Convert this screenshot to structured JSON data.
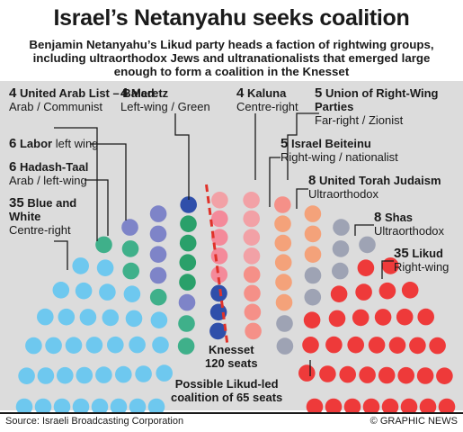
{
  "header": {
    "title": "Israel’s Netanyahu seeks coalition",
    "subtitle_line1": "Benjamin Netanyahu’s Likud party heads a faction of rightwing groups,",
    "subtitle_line2": "including ultraorthodox Jews and ultranationalists that emerged large",
    "subtitle_line3": "enough to form a coalition in the Knesset"
  },
  "annotations": {
    "knesset_line1": "Knesset",
    "knesset_line2": "120 seats",
    "coalition_line1": "Possible Likud-led",
    "coalition_line2": "coalition of 65 seats"
  },
  "footer": {
    "source": "Source: Israeli Broadcasting Corporation",
    "credit": "© GRAPHIC NEWS"
  },
  "colors": {
    "panel_bg": "#dcdcdc",
    "divider": "#e0322a",
    "leader_lines": "#1a1a1a"
  },
  "chart_data": {
    "type": "parliament",
    "total_seats": 120,
    "coalition_seats": 65,
    "parties": [
      {
        "name": "Blue and White",
        "description": "Centre-right",
        "seats": 35,
        "color": "#6ec8ef",
        "bloc": "opposition",
        "label": "blue-and-white"
      },
      {
        "name": "Hadash-Taal",
        "description": "Arab / left-wing",
        "seats": 6,
        "color": "#3fb08a",
        "bloc": "opposition",
        "label": "hadash-taal"
      },
      {
        "name": "Labor",
        "description": "left wing",
        "seats": 6,
        "color": "#7e84c8",
        "bloc": "opposition",
        "label": "labor"
      },
      {
        "name": "United Arab List – Balad",
        "description": "Arab / Communist",
        "seats": 4,
        "color": "#2aa06a",
        "bloc": "opposition",
        "label": "united-arab-list"
      },
      {
        "name": "Meretz",
        "description": "Left-wing / Green",
        "seats": 4,
        "color": "#2f4faa",
        "bloc": "opposition",
        "label": "meretz"
      },
      {
        "name": "Kaluna",
        "description": "Centre-right",
        "seats": 4,
        "color": "#f48a9a",
        "bloc": "coalition",
        "label": "kaluna"
      },
      {
        "name": "Union of Right-Wing Parties",
        "description": "Far-right / Zionist",
        "seats": 5,
        "color": "#f2a1a6",
        "bloc": "coalition",
        "label": "union-right-wing"
      },
      {
        "name": "Israel Beiteinu",
        "description": "Right-wing / nationalist",
        "seats": 5,
        "color": "#f59088",
        "bloc": "coalition",
        "label": "israel-beiteinu"
      },
      {
        "name": "United Torah Judaism",
        "description": "Ultraorthodox",
        "seats": 8,
        "color": "#f4a27a",
        "bloc": "coalition",
        "label": "united-torah-judaism"
      },
      {
        "name": "Shas",
        "description": "Ultraorthodox",
        "seats": 8,
        "color": "#9ea3b4",
        "bloc": "coalition",
        "label": "shas"
      },
      {
        "name": "Likud",
        "description": "Right-wing",
        "seats": 35,
        "color": "#ee3a3a",
        "bloc": "coalition",
        "label": "likud"
      }
    ]
  }
}
